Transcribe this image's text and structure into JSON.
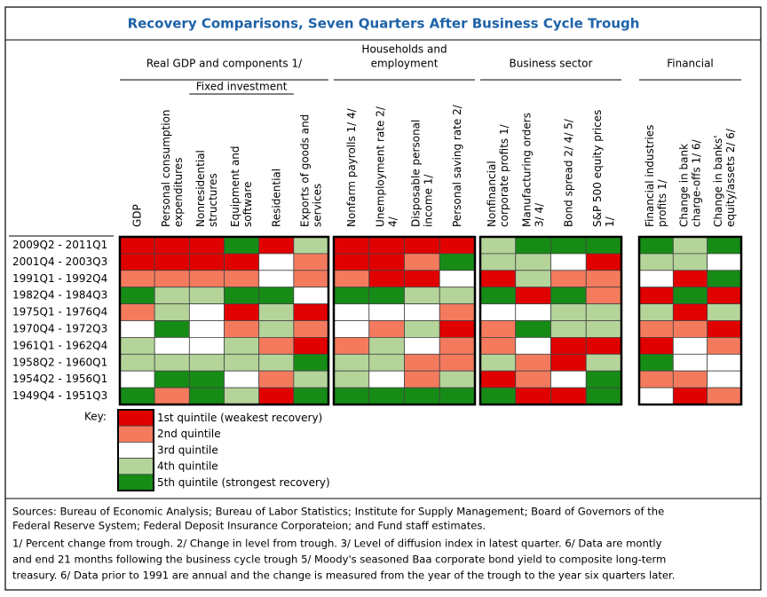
{
  "title": "Recovery Comparisons, Seven Quarters After Business Cycle Trough",
  "table": {
    "groups": [
      {
        "label": [
          "Real GDP and components 1/"
        ],
        "columns": [
          [
            "GDP"
          ],
          [
            "Personal consumption",
            "expenditures"
          ],
          {
            "label": "Fixed investment",
            "columns": [
              [
                "Nonresidential",
                "structures"
              ],
              [
                "Equipment and",
                "software"
              ],
              [
                "Residential"
              ]
            ]
          },
          [
            "Exports of goods and",
            "services"
          ]
        ]
      },
      {
        "label": [
          "Households and",
          "employment"
        ],
        "columns": [
          [
            "Nonfarm payrolls 1/ 4/"
          ],
          [
            "Unemployment rate 2/",
            "4/"
          ],
          [
            "Disposable personal",
            "income 1/"
          ],
          [
            "Personal saving rate 2/"
          ]
        ]
      },
      {
        "label": [
          "Business sector"
        ],
        "columns": [
          [
            "Nonfinancial",
            "corporate profits 1/"
          ],
          [
            "Manufacturing orders",
            "3/ 4/"
          ],
          [
            "Bond spread 2/ 4/ 5/"
          ],
          [
            "S&P 500 equity prices",
            "1/"
          ]
        ]
      },
      {
        "label": [
          "Financial"
        ],
        "columns": [
          [
            "Financial industries",
            "profits 1/"
          ],
          [
            "Change in bank",
            "charge-offs 1/ 6/"
          ],
          [
            "Change in banks'",
            "equity/assets 2/ 6/"
          ]
        ]
      }
    ],
    "rows": [
      {
        "label": "2009Q2 - 2011Q1",
        "values": [
          1,
          1,
          1,
          5,
          1,
          4,
          1,
          1,
          1,
          1,
          4,
          5,
          5,
          5,
          5,
          4,
          5
        ]
      },
      {
        "label": "2001Q4 - 2003Q3",
        "values": [
          1,
          1,
          1,
          1,
          3,
          2,
          1,
          1,
          2,
          5,
          4,
          4,
          3,
          1,
          4,
          4,
          3
        ]
      },
      {
        "label": "1991Q1 - 1992Q4",
        "values": [
          2,
          2,
          2,
          2,
          3,
          2,
          2,
          1,
          1,
          3,
          1,
          4,
          2,
          2,
          3,
          1,
          5
        ]
      },
      {
        "label": "1982Q4 - 1984Q3",
        "values": [
          5,
          4,
          4,
          5,
          5,
          3,
          5,
          5,
          4,
          4,
          5,
          1,
          5,
          2,
          1,
          5,
          1
        ]
      },
      {
        "label": "1975Q1 - 1976Q4",
        "values": [
          2,
          4,
          3,
          1,
          4,
          1,
          3,
          3,
          3,
          2,
          3,
          3,
          4,
          4,
          4,
          1,
          4
        ]
      },
      {
        "label": "1970Q4 - 1972Q3",
        "values": [
          3,
          5,
          3,
          2,
          4,
          2,
          3,
          2,
          4,
          1,
          2,
          5,
          4,
          4,
          2,
          2,
          1
        ]
      },
      {
        "label": "1961Q1 - 1962Q4",
        "values": [
          4,
          3,
          3,
          4,
          2,
          1,
          2,
          4,
          3,
          2,
          2,
          3,
          1,
          1,
          1,
          3,
          2
        ]
      },
      {
        "label": "1958Q2 - 1960Q1",
        "values": [
          4,
          4,
          4,
          4,
          4,
          5,
          4,
          4,
          2,
          2,
          4,
          2,
          1,
          4,
          5,
          3,
          3
        ]
      },
      {
        "label": "1954Q2 - 1956Q1",
        "values": [
          3,
          5,
          5,
          3,
          2,
          4,
          4,
          3,
          2,
          4,
          1,
          2,
          3,
          5,
          2,
          2,
          3
        ]
      },
      {
        "label": "1949Q4 - 1951Q3",
        "values": [
          5,
          2,
          5,
          4,
          1,
          5,
          5,
          5,
          5,
          5,
          5,
          1,
          1,
          5,
          3,
          1,
          2
        ]
      }
    ]
  },
  "key": {
    "title": "Key:",
    "items": [
      {
        "value": 1,
        "label": "1st quintile (weakest recovery)",
        "color": "#e00000"
      },
      {
        "value": 2,
        "label": "2nd quintile",
        "color": "#f47a5e"
      },
      {
        "value": 3,
        "label": "3rd quintile",
        "color": "#ffffff"
      },
      {
        "value": 4,
        "label": "4th quintile",
        "color": "#b4d49a"
      },
      {
        "value": 5,
        "label": "5th quintile (strongest recovery)",
        "color": "#168c16"
      }
    ]
  },
  "notes": [
    "Sources:  Bureau of Economic Analysis; Bureau of Labor Statistics; Institute for Supply Management; Board of Governors of the",
    "Federal Reserve System; Federal Deposit Insurance Corporateion; and Fund staff estimates.",
    "1/ Percent change from trough.  2/ Change in level from trough.  3/ Level of diffusion index in latest quarter.  6/ Data are montly",
    "and end 21 months following the business cycle trough 5/ Moody's seasoned Baa corporate bond yield to composite long-term",
    "treasury.  6/ Data prior to 1991 are annual and the change is measured from the year of the trough to the year six quarters later."
  ]
}
